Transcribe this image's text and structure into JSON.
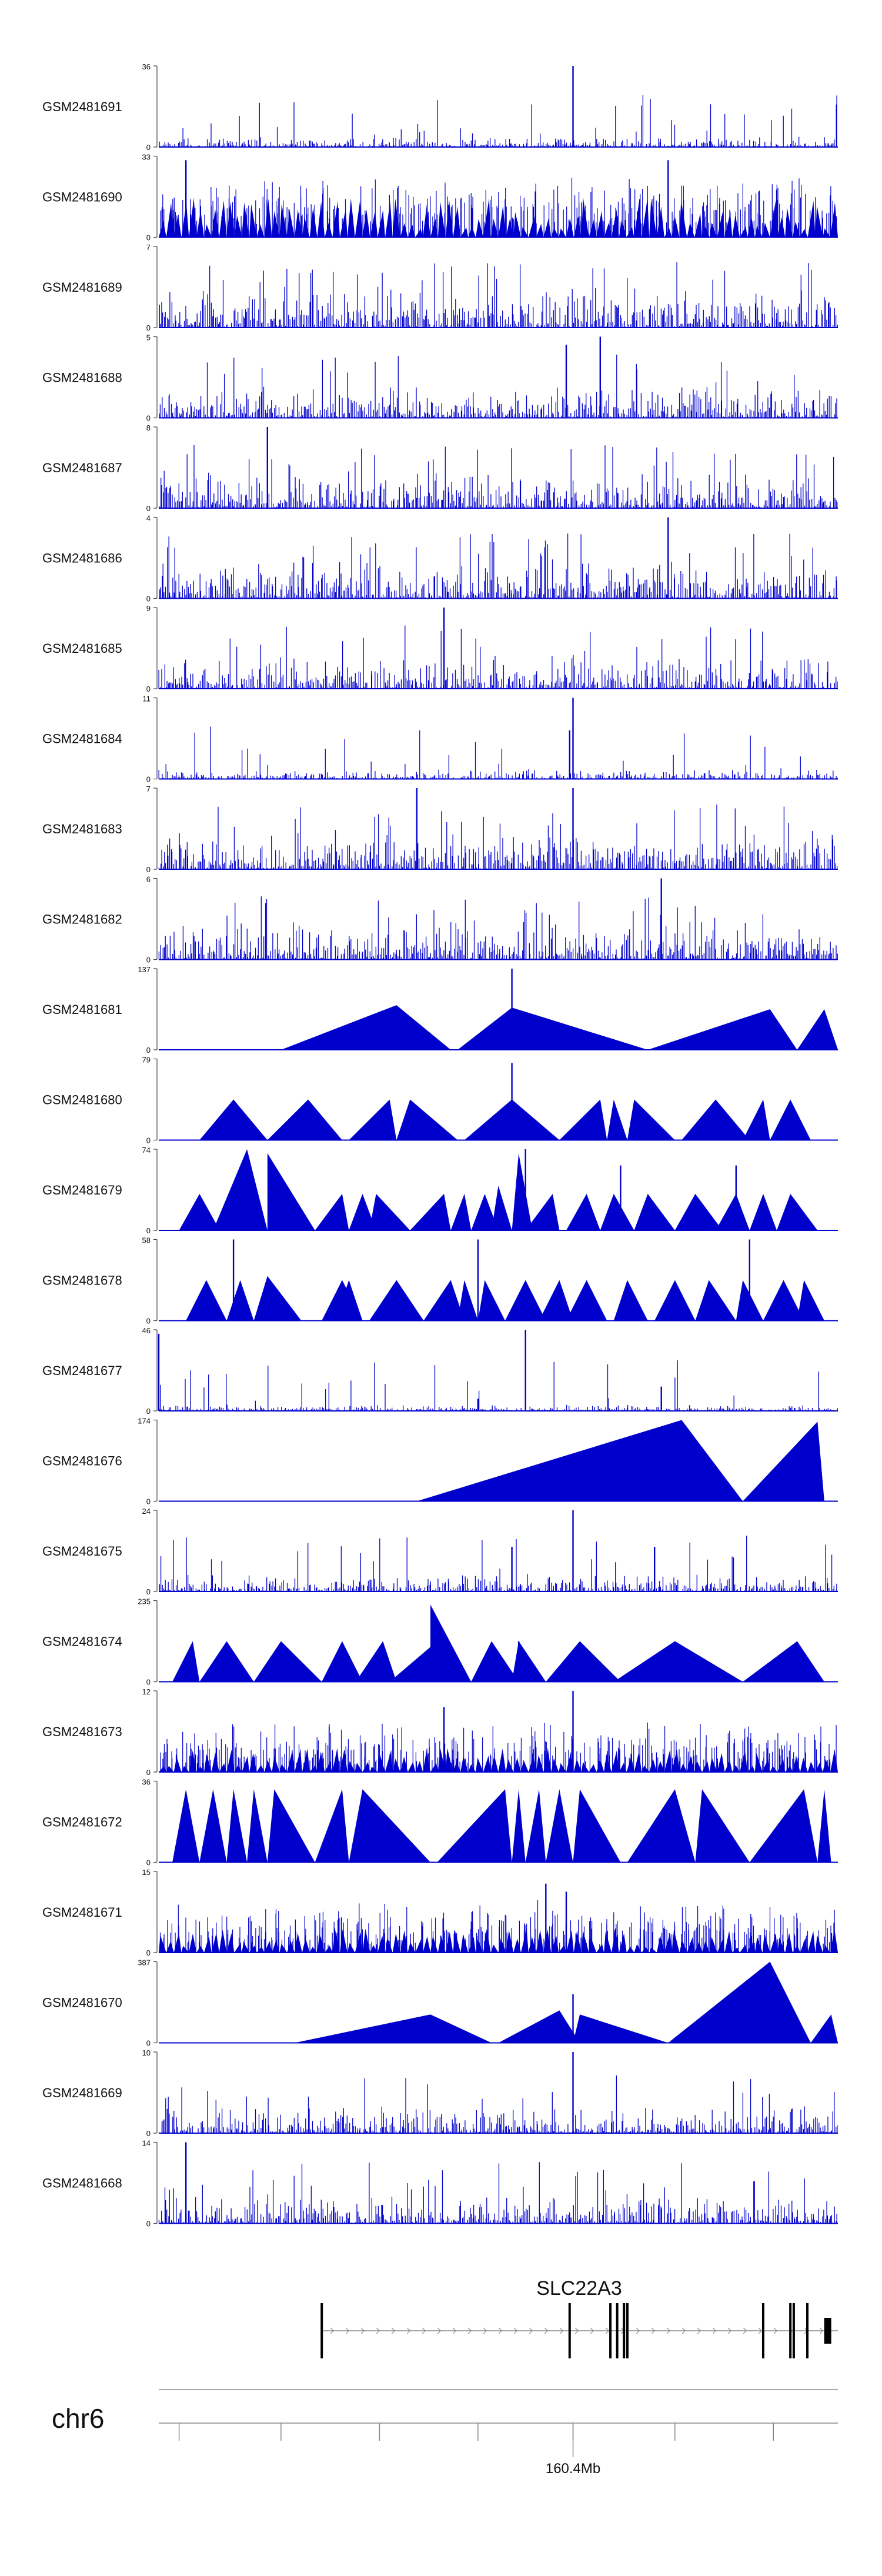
{
  "chart_data": {
    "type": "area",
    "title": "",
    "color": "#0000CC",
    "tracks": [
      {
        "name": "GSM2481691",
        "ymax": "36",
        "ymin": "0",
        "style": "dense",
        "ratio": 0.13,
        "peaks": [
          [
            0.61,
            1.0
          ]
        ]
      },
      {
        "name": "GSM2481690",
        "ymax": "33",
        "ymin": "0",
        "style": "spiky-tri",
        "ratio": 0.5,
        "peaks": [
          [
            0.04,
            0.95
          ],
          [
            0.75,
            0.95
          ]
        ]
      },
      {
        "name": "GSM2481689",
        "ymax": "7",
        "ymin": "0",
        "style": "dense",
        "ratio": 0.55,
        "peaks": []
      },
      {
        "name": "GSM2481688",
        "ymax": "5",
        "ymin": "0",
        "style": "dense",
        "ratio": 0.45,
        "peaks": [
          [
            0.6,
            0.9
          ],
          [
            0.65,
            1.0
          ]
        ]
      },
      {
        "name": "GSM2481687",
        "ymax": "8",
        "ymin": "0",
        "style": "dense",
        "ratio": 0.5,
        "peaks": [
          [
            0.16,
            1.0
          ]
        ]
      },
      {
        "name": "GSM2481686",
        "ymax": "4",
        "ymin": "0",
        "style": "dense",
        "ratio": 0.5,
        "peaks": [
          [
            0.75,
            1.0
          ]
        ]
      },
      {
        "name": "GSM2481685",
        "ymax": "9",
        "ymin": "0",
        "style": "dense",
        "ratio": 0.45,
        "peaks": [
          [
            0.42,
            1.0
          ]
        ]
      },
      {
        "name": "GSM2481684",
        "ymax": "11",
        "ymin": "0",
        "style": "dense",
        "ratio": 0.12,
        "peaks": [
          [
            0.61,
            1.0
          ],
          [
            0.605,
            0.6
          ]
        ]
      },
      {
        "name": "GSM2481683",
        "ymax": "7",
        "ymin": "0",
        "style": "dense",
        "ratio": 0.5,
        "peaks": [
          [
            0.38,
            1.0
          ],
          [
            0.61,
            1.0
          ]
        ]
      },
      {
        "name": "GSM2481682",
        "ymax": "6",
        "ymin": "0",
        "style": "dense",
        "ratio": 0.5,
        "peaks": [
          [
            0.74,
            1.0
          ]
        ]
      },
      {
        "name": "GSM2481681",
        "ymax": "137",
        "ymin": "0",
        "style": "tri",
        "triangles": [
          [
            0.18,
            0.35,
            0.43,
            0.55
          ],
          [
            0.44,
            0.52,
            0.72,
            0.52
          ],
          [
            0.72,
            0.9,
            0.94,
            0.5
          ],
          [
            0.94,
            0.98,
            1.0,
            0.5
          ]
        ],
        "peaks": [
          [
            0.52,
            1.0
          ]
        ]
      },
      {
        "name": "GSM2481680",
        "ymax": "79",
        "ymin": "0",
        "style": "tri",
        "triangles": [
          [
            0.06,
            0.11,
            0.16,
            0.5
          ],
          [
            0.16,
            0.22,
            0.27,
            0.5
          ],
          [
            0.28,
            0.34,
            0.35,
            0.5
          ],
          [
            0.35,
            0.37,
            0.44,
            0.5
          ],
          [
            0.45,
            0.52,
            0.59,
            0.5
          ],
          [
            0.59,
            0.65,
            0.66,
            0.5
          ],
          [
            0.66,
            0.67,
            0.69,
            0.5
          ],
          [
            0.69,
            0.7,
            0.76,
            0.5
          ],
          [
            0.77,
            0.82,
            0.87,
            0.5
          ],
          [
            0.86,
            0.89,
            0.9,
            0.5
          ],
          [
            0.9,
            0.93,
            0.96,
            0.5
          ]
        ],
        "peaks": [
          [
            0.52,
            0.95
          ]
        ]
      },
      {
        "name": "GSM2481679",
        "ymax": "74",
        "ymin": "0",
        "style": "tri",
        "triangles": [
          [
            0.03,
            0.06,
            0.09,
            0.45
          ],
          [
            0.08,
            0.13,
            0.16,
            1.0
          ],
          [
            0.16,
            0.16,
            0.23,
            0.95
          ],
          [
            0.23,
            0.27,
            0.28,
            0.45
          ],
          [
            0.28,
            0.3,
            0.32,
            0.45
          ],
          [
            0.31,
            0.32,
            0.37,
            0.45
          ],
          [
            0.37,
            0.42,
            0.43,
            0.45
          ],
          [
            0.43,
            0.45,
            0.46,
            0.45
          ],
          [
            0.46,
            0.48,
            0.5,
            0.45
          ],
          [
            0.49,
            0.5,
            0.52,
            0.55
          ],
          [
            0.52,
            0.53,
            0.55,
            0.95
          ],
          [
            0.54,
            0.58,
            0.59,
            0.45
          ],
          [
            0.6,
            0.63,
            0.65,
            0.45
          ],
          [
            0.65,
            0.67,
            0.7,
            0.45
          ],
          [
            0.7,
            0.72,
            0.76,
            0.45
          ],
          [
            0.76,
            0.79,
            0.83,
            0.45
          ],
          [
            0.82,
            0.85,
            0.87,
            0.45
          ],
          [
            0.87,
            0.89,
            0.91,
            0.45
          ],
          [
            0.91,
            0.93,
            0.97,
            0.45
          ]
        ],
        "peaks": [
          [
            0.54,
            1.0
          ],
          [
            0.68,
            0.8
          ],
          [
            0.85,
            0.8
          ]
        ]
      },
      {
        "name": "GSM2481678",
        "ymax": "58",
        "ymin": "0",
        "style": "tri",
        "triangles": [
          [
            0.04,
            0.07,
            0.1,
            0.5
          ],
          [
            0.1,
            0.12,
            0.14,
            0.5
          ],
          [
            0.14,
            0.16,
            0.21,
            0.55
          ],
          [
            0.24,
            0.27,
            0.3,
            0.5
          ],
          [
            0.26,
            0.28,
            0.3,
            0.5
          ],
          [
            0.31,
            0.35,
            0.39,
            0.5
          ],
          [
            0.39,
            0.43,
            0.45,
            0.5
          ],
          [
            0.44,
            0.45,
            0.47,
            0.5
          ],
          [
            0.47,
            0.48,
            0.51,
            0.5
          ],
          [
            0.51,
            0.54,
            0.57,
            0.5
          ],
          [
            0.56,
            0.59,
            0.61,
            0.5
          ],
          [
            0.6,
            0.63,
            0.66,
            0.5
          ],
          [
            0.67,
            0.69,
            0.72,
            0.5
          ],
          [
            0.73,
            0.76,
            0.79,
            0.5
          ],
          [
            0.79,
            0.81,
            0.85,
            0.5
          ],
          [
            0.85,
            0.86,
            0.89,
            0.5
          ],
          [
            0.89,
            0.92,
            0.95,
            0.5
          ],
          [
            0.94,
            0.95,
            0.98,
            0.5
          ]
        ],
        "peaks": [
          [
            0.11,
            1.0
          ],
          [
            0.47,
            1.0
          ],
          [
            0.87,
            1.0
          ]
        ]
      },
      {
        "name": "GSM2481677",
        "ymax": "46",
        "ymin": "0",
        "style": "dense",
        "ratio": 0.08,
        "peaks": [
          [
            0.0,
            0.95
          ],
          [
            0.54,
            1.0
          ],
          [
            0.47,
            0.15
          ],
          [
            0.74,
            0.3
          ]
        ]
      },
      {
        "name": "GSM2481676",
        "ymax": "174",
        "ymin": "0",
        "style": "tri",
        "triangles": [
          [
            0.38,
            0.77,
            0.86,
            1.0
          ],
          [
            0.86,
            0.97,
            0.98,
            0.98
          ]
        ],
        "peaks": []
      },
      {
        "name": "GSM2481675",
        "ymax": "24",
        "ymin": "0",
        "style": "dense",
        "ratio": 0.22,
        "peaks": [
          [
            0.61,
            1.0
          ],
          [
            0.52,
            0.55
          ],
          [
            0.73,
            0.55
          ]
        ]
      },
      {
        "name": "GSM2481674",
        "ymax": "235",
        "ymin": "0",
        "style": "tri",
        "triangles": [
          [
            0.02,
            0.05,
            0.06,
            0.5
          ],
          [
            0.06,
            0.1,
            0.14,
            0.5
          ],
          [
            0.14,
            0.18,
            0.24,
            0.5
          ],
          [
            0.24,
            0.27,
            0.3,
            0.5
          ],
          [
            0.29,
            0.33,
            0.35,
            0.5
          ],
          [
            0.34,
            0.41,
            0.42,
            0.5
          ],
          [
            0.4,
            0.4,
            0.46,
            0.95
          ],
          [
            0.46,
            0.49,
            0.53,
            0.5
          ],
          [
            0.52,
            0.53,
            0.57,
            0.5
          ],
          [
            0.57,
            0.62,
            0.68,
            0.5
          ],
          [
            0.67,
            0.76,
            0.86,
            0.5
          ],
          [
            0.86,
            0.94,
            0.98,
            0.5
          ]
        ],
        "peaks": [
          [
            0.53,
            0.5
          ]
        ]
      },
      {
        "name": "GSM2481673",
        "ymax": "12",
        "ymin": "0",
        "style": "spiky-tri",
        "ratio": 0.3,
        "peaks": [
          [
            0.61,
            1.0
          ],
          [
            0.42,
            0.8
          ]
        ]
      },
      {
        "name": "GSM2481672",
        "ymax": "36",
        "ymin": "0",
        "style": "tri",
        "triangles": [
          [
            0.02,
            0.04,
            0.06,
            0.9
          ],
          [
            0.06,
            0.08,
            0.1,
            0.9
          ],
          [
            0.1,
            0.11,
            0.13,
            0.9
          ],
          [
            0.13,
            0.14,
            0.16,
            0.9
          ],
          [
            0.16,
            0.17,
            0.23,
            0.9
          ],
          [
            0.23,
            0.27,
            0.28,
            0.9
          ],
          [
            0.28,
            0.3,
            0.4,
            0.9
          ],
          [
            0.41,
            0.51,
            0.52,
            0.9
          ],
          [
            0.52,
            0.53,
            0.54,
            0.9
          ],
          [
            0.54,
            0.56,
            0.57,
            0.9
          ],
          [
            0.57,
            0.59,
            0.61,
            0.9
          ],
          [
            0.61,
            0.62,
            0.68,
            0.9
          ],
          [
            0.69,
            0.76,
            0.79,
            0.9
          ],
          [
            0.79,
            0.8,
            0.87,
            0.9
          ],
          [
            0.87,
            0.95,
            0.97,
            0.9
          ],
          [
            0.97,
            0.98,
            0.99,
            0.9
          ]
        ],
        "peaks": []
      },
      {
        "name": "GSM2481671",
        "ymax": "15",
        "ymin": "0",
        "style": "spiky-tri",
        "ratio": 0.3,
        "peaks": [
          [
            0.57,
            0.85
          ],
          [
            0.6,
            0.75
          ]
        ]
      },
      {
        "name": "GSM2481670",
        "ymax": "387",
        "ymin": "0",
        "style": "tri",
        "triangles": [
          [
            0.2,
            0.4,
            0.49,
            0.35
          ],
          [
            0.5,
            0.59,
            0.62,
            0.4
          ],
          [
            0.61,
            0.62,
            0.75,
            0.35
          ],
          [
            0.75,
            0.9,
            0.96,
            1.0
          ],
          [
            0.96,
            0.99,
            1.0,
            0.35
          ]
        ],
        "peaks": [
          [
            0.61,
            0.6
          ]
        ]
      },
      {
        "name": "GSM2481669",
        "ymax": "10",
        "ymin": "0",
        "style": "dense",
        "ratio": 0.35,
        "peaks": [
          [
            0.61,
            1.0
          ]
        ]
      },
      {
        "name": "GSM2481668",
        "ymax": "14",
        "ymin": "0",
        "style": "dense",
        "ratio": 0.4,
        "peaks": [
          [
            0.04,
            1.0
          ]
        ]
      }
    ],
    "gene": {
      "name": "SLC22A3",
      "start": 0.24,
      "end": 1.0,
      "exons": [
        0.24,
        0.605,
        0.665,
        0.675,
        0.685,
        0.69,
        0.89,
        0.93,
        0.935,
        0.955,
        0.985
      ]
    },
    "chromosome": "chr6",
    "axis": {
      "tick_label": "160.4Mb",
      "tick_label_pos": 0.61,
      "minor_ticks": [
        0.03,
        0.18,
        0.325,
        0.47,
        0.61,
        0.76,
        0.905
      ]
    }
  }
}
